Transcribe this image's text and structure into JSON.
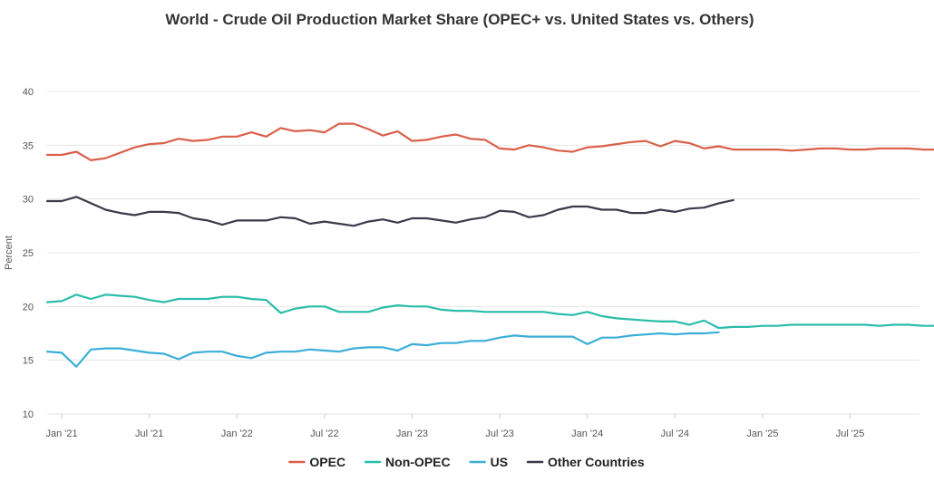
{
  "chart_data": {
    "type": "line",
    "title": "World - Crude Oil Production Market Share (OPEC+ vs. United States vs. Others)",
    "xlabel": "",
    "ylabel": "Percent",
    "ylim": [
      10,
      40
    ],
    "yticks": [
      10,
      15,
      20,
      25,
      30,
      35,
      40
    ],
    "x_start": "2020-12",
    "x_end": "2025-12",
    "x_ticks": [
      {
        "month_index": 1,
        "label": "Jan '21"
      },
      {
        "month_index": 7,
        "label": "Jul '21"
      },
      {
        "month_index": 13,
        "label": "Jan '22"
      },
      {
        "month_index": 19,
        "label": "Jul '22"
      },
      {
        "month_index": 25,
        "label": "Jan '23"
      },
      {
        "month_index": 31,
        "label": "Jul '23"
      },
      {
        "month_index": 37,
        "label": "Jan '24"
      },
      {
        "month_index": 43,
        "label": "Jul '24"
      },
      {
        "month_index": 49,
        "label": "Jan '25"
      },
      {
        "month_index": 55,
        "label": "Jul '25"
      }
    ],
    "grid": true,
    "legend_position": "bottom-center",
    "series": [
      {
        "name": "OPEC",
        "color": "#d9604a",
        "values": [
          34.1,
          34.1,
          34.4,
          33.6,
          33.8,
          34.3,
          34.8,
          35.1,
          35.2,
          35.6,
          35.4,
          35.5,
          35.8,
          35.8,
          36.2,
          35.8,
          36.6,
          36.3,
          36.4,
          36.2,
          37.0,
          37.0,
          36.5,
          35.9,
          36.3,
          35.4,
          35.5,
          35.8,
          36.0,
          35.6,
          35.5,
          34.7,
          34.6,
          35.0,
          34.8,
          34.5,
          34.4,
          34.8,
          34.9,
          35.1,
          35.3,
          35.4,
          34.9,
          35.4,
          35.2,
          34.7,
          34.9,
          34.6,
          34.6,
          34.6,
          34.6,
          34.5,
          34.6,
          34.7,
          34.7,
          34.6,
          34.6,
          34.7,
          34.7,
          34.7,
          34.6,
          34.6
        ]
      },
      {
        "name": "Non-OPEC",
        "color": "#2bbcaa",
        "values": [
          20.4,
          20.5,
          21.1,
          20.7,
          21.1,
          21.0,
          20.9,
          20.6,
          20.4,
          20.7,
          20.7,
          20.7,
          20.9,
          20.9,
          20.7,
          20.6,
          19.4,
          19.8,
          20.0,
          20.0,
          19.5,
          19.5,
          19.5,
          19.9,
          20.1,
          20.0,
          20.0,
          19.7,
          19.6,
          19.6,
          19.5,
          19.5,
          19.5,
          19.5,
          19.5,
          19.3,
          19.2,
          19.5,
          19.1,
          18.9,
          18.8,
          18.7,
          18.6,
          18.6,
          18.3,
          18.7,
          18.0,
          18.1,
          18.1,
          18.2,
          18.2,
          18.3,
          18.3,
          18.3,
          18.3,
          18.3,
          18.3,
          18.2,
          18.3,
          18.3,
          18.2,
          18.2
        ]
      },
      {
        "name": "US",
        "color": "#3aaed8",
        "values": [
          15.8,
          15.7,
          14.4,
          16.0,
          16.1,
          16.1,
          15.9,
          15.7,
          15.6,
          15.1,
          15.7,
          15.8,
          15.8,
          15.4,
          15.2,
          15.7,
          15.8,
          15.8,
          16.0,
          15.9,
          15.8,
          16.1,
          16.2,
          16.2,
          15.9,
          16.5,
          16.4,
          16.6,
          16.6,
          16.8,
          16.8,
          17.1,
          17.3,
          17.2,
          17.2,
          17.2,
          17.2,
          16.5,
          17.1,
          17.1,
          17.3,
          17.4,
          17.5,
          17.4,
          17.5,
          17.5,
          17.6
        ]
      },
      {
        "name": "Other Countries",
        "color": "#3a3a4a",
        "values": [
          29.8,
          29.8,
          30.2,
          29.6,
          29.0,
          28.7,
          28.5,
          28.8,
          28.8,
          28.7,
          28.2,
          28.0,
          27.6,
          28.0,
          28.0,
          28.0,
          28.3,
          28.2,
          27.7,
          27.9,
          27.7,
          27.5,
          27.9,
          28.1,
          27.8,
          28.2,
          28.2,
          28.0,
          27.8,
          28.1,
          28.3,
          28.9,
          28.8,
          28.3,
          28.5,
          29.0,
          29.3,
          29.3,
          29.0,
          29.0,
          28.7,
          28.7,
          29.0,
          28.8,
          29.1,
          29.2,
          29.6,
          29.9
        ]
      }
    ]
  }
}
